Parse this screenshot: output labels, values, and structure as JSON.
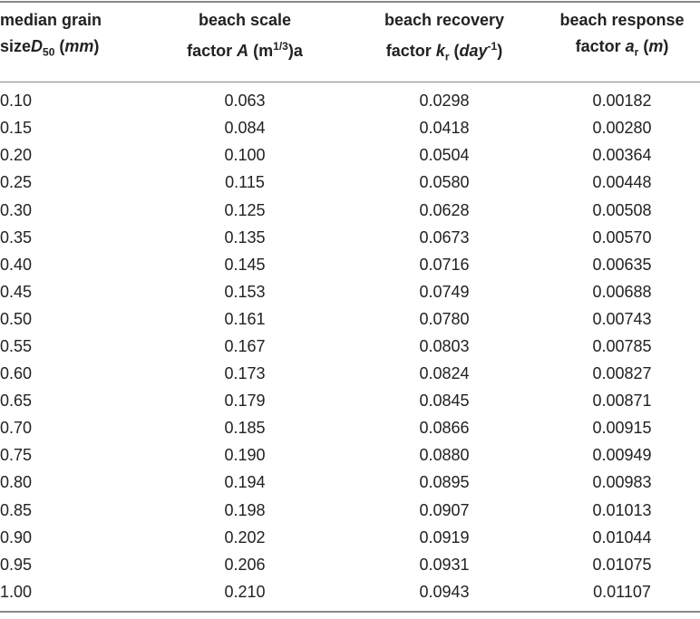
{
  "table": {
    "header": [
      [
        "median grain",
        "size",
        "D",
        "50",
        "(",
        "mm",
        ")"
      ],
      [
        "beach scale",
        "factor",
        "A",
        "(m",
        "1/3",
        ")a"
      ],
      [
        "beach recovery",
        "factor",
        "k",
        "r",
        "(",
        "day",
        "-1",
        ")"
      ],
      [
        "beach response",
        "factor",
        "a",
        "r",
        "(",
        "m",
        ")"
      ]
    ],
    "rows": [
      [
        "0.10",
        "0.063",
        "0.0298",
        "0.00182"
      ],
      [
        "0.15",
        "0.084",
        "0.0418",
        "0.00280"
      ],
      [
        "0.20",
        "0.100",
        "0.0504",
        "0.00364"
      ],
      [
        "0.25",
        "0.115",
        "0.0580",
        "0.00448"
      ],
      [
        "0.30",
        "0.125",
        "0.0628",
        "0.00508"
      ],
      [
        "0.35",
        "0.135",
        "0.0673",
        "0.00570"
      ],
      [
        "0.40",
        "0.145",
        "0.0716",
        "0.00635"
      ],
      [
        "0.45",
        "0.153",
        "0.0749",
        "0.00688"
      ],
      [
        "0.50",
        "0.161",
        "0.0780",
        "0.00743"
      ],
      [
        "0.55",
        "0.167",
        "0.0803",
        "0.00785"
      ],
      [
        "0.60",
        "0.173",
        "0.0824",
        "0.00827"
      ],
      [
        "0.65",
        "0.179",
        "0.0845",
        "0.00871"
      ],
      [
        "0.70",
        "0.185",
        "0.0866",
        "0.00915"
      ],
      [
        "0.75",
        "0.190",
        "0.0880",
        "0.00949"
      ],
      [
        "0.80",
        "0.194",
        "0.0895",
        "0.00983"
      ],
      [
        "0.85",
        "0.198",
        "0.0907",
        "0.01013"
      ],
      [
        "0.90",
        "0.202",
        "0.0919",
        "0.01044"
      ],
      [
        "0.95",
        "0.206",
        "0.0931",
        "0.01075"
      ],
      [
        "1.00",
        "0.210",
        "0.0943",
        "0.01107"
      ]
    ]
  }
}
